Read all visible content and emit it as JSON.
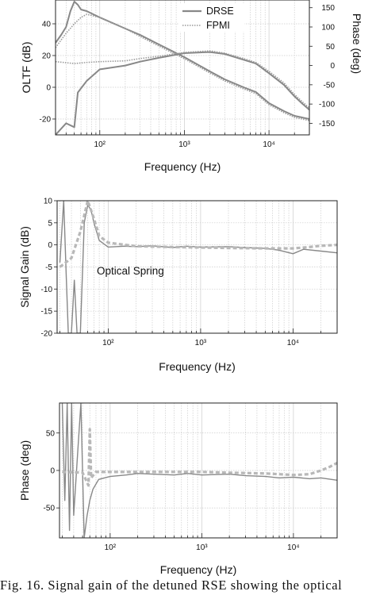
{
  "caption": "Fig. 16.  Signal gain of the detuned RSE showing the optical",
  "colors": {
    "drse": "#888888",
    "fpmi": "#9a9a9a",
    "fit": "#b8b8b8",
    "grid": "#cccccc",
    "frame": "#222222"
  },
  "chart_data": [
    {
      "type": "line",
      "xlabel": "Frequency (Hz)",
      "ylabel": "OLTF (dB)",
      "y2label": "Phase (deg)",
      "xscale": "log",
      "xlim": [
        30,
        30000
      ],
      "ylim": [
        -30,
        55
      ],
      "y2lim": [
        -180,
        170
      ],
      "xticks": [
        100,
        1000,
        10000
      ],
      "xtick_labels": [
        "10²",
        "10³",
        "10⁴"
      ],
      "yticks": [
        -20,
        0,
        20,
        40
      ],
      "y2ticks": [
        -150,
        -100,
        -50,
        0,
        50,
        100,
        150
      ],
      "legend": [
        "DRSE",
        "FPMI"
      ],
      "legend_position": "top-right",
      "series": [
        {
          "name": "DRSE",
          "axis": "left",
          "style": "solid",
          "points": [
            [
              30,
              28
            ],
            [
              35,
              33
            ],
            [
              40,
              38
            ],
            [
              45,
              48
            ],
            [
              50,
              54
            ],
            [
              55,
              52
            ],
            [
              60,
              49
            ],
            [
              70,
              48
            ],
            [
              100,
              44
            ],
            [
              200,
              37
            ],
            [
              300,
              33
            ],
            [
              500,
              27
            ],
            [
              1000,
              19
            ],
            [
              2000,
              10
            ],
            [
              3000,
              5
            ],
            [
              5000,
              0
            ],
            [
              7000,
              -3
            ],
            [
              10000,
              -10
            ],
            [
              15000,
              -15
            ],
            [
              20000,
              -18
            ],
            [
              30000,
              -20
            ]
          ]
        },
        {
          "name": "FPMI",
          "axis": "left",
          "style": "dotted",
          "points": [
            [
              30,
              25
            ],
            [
              40,
              34
            ],
            [
              50,
              40
            ],
            [
              60,
              44
            ],
            [
              70,
              46
            ],
            [
              100,
              44
            ],
            [
              200,
              37
            ],
            [
              300,
              32
            ],
            [
              500,
              26
            ],
            [
              1000,
              18
            ],
            [
              2000,
              9
            ],
            [
              3000,
              4
            ],
            [
              5000,
              -1
            ],
            [
              7000,
              -4
            ],
            [
              10000,
              -11
            ],
            [
              15000,
              -16
            ],
            [
              20000,
              -19
            ],
            [
              30000,
              -21
            ]
          ]
        },
        {
          "name": "DRSE",
          "axis": "right",
          "style": "solid",
          "points": [
            [
              30,
              -180
            ],
            [
              40,
              -150
            ],
            [
              50,
              -160
            ],
            [
              55,
              -70
            ],
            [
              70,
              -40
            ],
            [
              100,
              -10
            ],
            [
              200,
              0
            ],
            [
              300,
              10
            ],
            [
              500,
              20
            ],
            [
              1000,
              32
            ],
            [
              2000,
              35
            ],
            [
              3000,
              30
            ],
            [
              5000,
              15
            ],
            [
              7000,
              5
            ],
            [
              10000,
              -20
            ],
            [
              15000,
              -50
            ],
            [
              20000,
              -80
            ],
            [
              25000,
              -100
            ],
            [
              30000,
              -115
            ]
          ]
        },
        {
          "name": "FPMI",
          "axis": "right",
          "style": "dotted",
          "points": [
            [
              30,
              10
            ],
            [
              50,
              5
            ],
            [
              70,
              8
            ],
            [
              100,
              10
            ],
            [
              200,
              12
            ],
            [
              300,
              18
            ],
            [
              500,
              24
            ],
            [
              1000,
              34
            ],
            [
              2000,
              38
            ],
            [
              3000,
              32
            ],
            [
              5000,
              18
            ],
            [
              7000,
              8
            ],
            [
              10000,
              -15
            ],
            [
              15000,
              -45
            ],
            [
              20000,
              -75
            ],
            [
              25000,
              -95
            ],
            [
              30000,
              -110
            ]
          ]
        }
      ]
    },
    {
      "type": "line",
      "xlabel": "Frequency (Hz)",
      "ylabel": "Signal Gain (dB)",
      "xscale": "log",
      "xlim": [
        28,
        30000
      ],
      "ylim": [
        -20,
        10
      ],
      "xticks": [
        100,
        1000,
        10000
      ],
      "xtick_labels": [
        "10²",
        "10³",
        "10⁴"
      ],
      "yticks": [
        -20,
        -15,
        -10,
        -5,
        0,
        5,
        10
      ],
      "annotation": "Optical Spring",
      "series": [
        {
          "style": "measured",
          "points": [
            [
              30,
              -4
            ],
            [
              33,
              10
            ],
            [
              35,
              -6
            ],
            [
              37,
              -20
            ],
            [
              40,
              -20
            ],
            [
              43,
              -8
            ],
            [
              46,
              -20
            ],
            [
              50,
              -20
            ],
            [
              55,
              5
            ],
            [
              60,
              9
            ],
            [
              65,
              8
            ],
            [
              70,
              5
            ],
            [
              80,
              1
            ],
            [
              100,
              -0.5
            ],
            [
              150,
              -0.3
            ],
            [
              200,
              -0.4
            ],
            [
              300,
              -0.2
            ],
            [
              500,
              -0.6
            ],
            [
              700,
              -0.3
            ],
            [
              1000,
              -0.5
            ],
            [
              2000,
              -0.4
            ],
            [
              3000,
              -0.6
            ],
            [
              5000,
              -0.8
            ],
            [
              7000,
              -1.2
            ],
            [
              10000,
              -2
            ],
            [
              13000,
              -1
            ],
            [
              20000,
              -1.4
            ],
            [
              30000,
              -1.8
            ]
          ]
        },
        {
          "style": "fit",
          "points": [
            [
              30,
              -5
            ],
            [
              40,
              -3
            ],
            [
              50,
              3
            ],
            [
              60,
              10
            ],
            [
              70,
              6
            ],
            [
              80,
              2
            ],
            [
              100,
              0.5
            ],
            [
              200,
              -0.3
            ],
            [
              500,
              -0.5
            ],
            [
              1000,
              -0.6
            ],
            [
              2000,
              -0.7
            ],
            [
              5000,
              -0.8
            ],
            [
              10000,
              -0.8
            ],
            [
              15000,
              -0.5
            ],
            [
              20000,
              -0.2
            ],
            [
              30000,
              0
            ]
          ]
        }
      ]
    },
    {
      "type": "line",
      "xlabel": "Frequency (Hz)",
      "ylabel": "Phase (deg)",
      "xscale": "log",
      "xlim": [
        28,
        30000
      ],
      "ylim": [
        -90,
        90
      ],
      "xticks": [
        100,
        1000,
        10000
      ],
      "xtick_labels": [
        "10²",
        "10³",
        "10⁴"
      ],
      "yticks": [
        -50,
        0,
        50
      ],
      "series": [
        {
          "style": "measured",
          "points": [
            [
              30,
              90
            ],
            [
              32,
              -40
            ],
            [
              34,
              90
            ],
            [
              36,
              -80
            ],
            [
              38,
              90
            ],
            [
              40,
              -60
            ],
            [
              44,
              20
            ],
            [
              48,
              90
            ],
            [
              52,
              -90
            ],
            [
              56,
              -60
            ],
            [
              60,
              -40
            ],
            [
              65,
              -25
            ],
            [
              75,
              -12
            ],
            [
              100,
              -8
            ],
            [
              150,
              -6
            ],
            [
              200,
              -4
            ],
            [
              300,
              -5
            ],
            [
              500,
              -6
            ],
            [
              700,
              -4
            ],
            [
              1000,
              -6
            ],
            [
              2000,
              -5
            ],
            [
              3000,
              -7
            ],
            [
              5000,
              -8
            ],
            [
              7000,
              -10
            ],
            [
              10000,
              -9
            ],
            [
              15000,
              -11
            ],
            [
              20000,
              -10
            ],
            [
              30000,
              -13
            ]
          ]
        },
        {
          "style": "fit",
          "points": [
            [
              30,
              -2
            ],
            [
              50,
              -3
            ],
            [
              58,
              -20
            ],
            [
              60,
              55
            ],
            [
              62,
              -10
            ],
            [
              70,
              -2
            ],
            [
              100,
              -2
            ],
            [
              200,
              -2
            ],
            [
              500,
              -2
            ],
            [
              1000,
              -2
            ],
            [
              2000,
              -3
            ],
            [
              5000,
              -4
            ],
            [
              10000,
              -6
            ],
            [
              15000,
              -5
            ],
            [
              20000,
              0
            ],
            [
              25000,
              5
            ],
            [
              30000,
              10
            ]
          ]
        }
      ]
    }
  ]
}
